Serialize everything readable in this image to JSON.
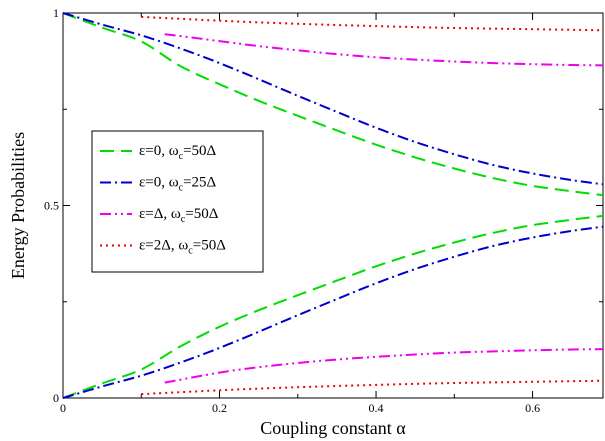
{
  "chart_data": {
    "type": "line",
    "title": "",
    "xlabel": "Coupling constant α",
    "ylabel": "Energy Probabilities",
    "xlim": [
      0,
      0.69
    ],
    "ylim": [
      0,
      1
    ],
    "x_ticks": [
      {
        "value": 0,
        "label": "0"
      },
      {
        "value": 0.2,
        "label": "0.2"
      },
      {
        "value": 0.4,
        "label": "0.4"
      },
      {
        "value": 0.6,
        "label": "0.6"
      }
    ],
    "y_ticks": [
      {
        "value": 0,
        "label": "0"
      },
      {
        "value": 0.5,
        "label": "0.5"
      },
      {
        "value": 1,
        "label": "1"
      }
    ],
    "grid": false,
    "legend_position": "left-center",
    "series": [
      {
        "key": "eps0-wc50",
        "legend_main": "ε=0, ω",
        "legend_sub": "c",
        "legend_tail": "=50Δ",
        "color": "#00dd00",
        "dash": "long-dash",
        "upper": {
          "x": [
            0,
            0.05,
            0.1,
            0.15,
            0.2,
            0.25,
            0.3,
            0.35,
            0.4,
            0.45,
            0.5,
            0.55,
            0.6,
            0.65,
            0.69
          ],
          "y": [
            1.0,
            0.962,
            0.926,
            0.862,
            0.815,
            0.772,
            0.733,
            0.695,
            0.658,
            0.625,
            0.596,
            0.571,
            0.551,
            0.537,
            0.527
          ]
        },
        "lower": {
          "x": [
            0,
            0.05,
            0.1,
            0.15,
            0.2,
            0.25,
            0.3,
            0.35,
            0.4,
            0.45,
            0.5,
            0.55,
            0.6,
            0.65,
            0.69
          ],
          "y": [
            0.0,
            0.038,
            0.074,
            0.134,
            0.185,
            0.228,
            0.267,
            0.305,
            0.342,
            0.375,
            0.404,
            0.429,
            0.449,
            0.463,
            0.473
          ]
        }
      },
      {
        "key": "eps0-wc25",
        "legend_main": "ε=0, ω",
        "legend_sub": "c",
        "legend_tail": "=25Δ",
        "color": "#0000cc",
        "dash": "dash-dot",
        "upper": {
          "x": [
            0,
            0.05,
            0.1,
            0.15,
            0.2,
            0.25,
            0.3,
            0.35,
            0.4,
            0.45,
            0.5,
            0.55,
            0.6,
            0.65,
            0.69
          ],
          "y": [
            1.0,
            0.97,
            0.942,
            0.908,
            0.87,
            0.828,
            0.785,
            0.743,
            0.702,
            0.665,
            0.633,
            0.605,
            0.583,
            0.566,
            0.555
          ]
        },
        "lower": {
          "x": [
            0,
            0.05,
            0.1,
            0.15,
            0.2,
            0.25,
            0.3,
            0.35,
            0.4,
            0.45,
            0.5,
            0.55,
            0.6,
            0.65,
            0.69
          ],
          "y": [
            0.0,
            0.03,
            0.058,
            0.092,
            0.13,
            0.172,
            0.215,
            0.257,
            0.298,
            0.335,
            0.367,
            0.395,
            0.417,
            0.434,
            0.445
          ]
        }
      },
      {
        "key": "epsD-wc50",
        "legend_main": "ε=Δ, ω",
        "legend_sub": "c",
        "legend_tail": "=50Δ",
        "color": "#ee00ee",
        "dash": "dash-dot-dot",
        "upper": {
          "x": [
            0.13,
            0.2,
            0.25,
            0.3,
            0.35,
            0.4,
            0.45,
            0.5,
            0.55,
            0.6,
            0.65,
            0.69
          ],
          "y": [
            0.945,
            0.927,
            0.914,
            0.903,
            0.893,
            0.885,
            0.879,
            0.874,
            0.87,
            0.867,
            0.865,
            0.864
          ]
        },
        "lower": {
          "x": [
            0.13,
            0.2,
            0.25,
            0.3,
            0.35,
            0.4,
            0.45,
            0.5,
            0.55,
            0.6,
            0.65,
            0.69
          ],
          "y": [
            0.04,
            0.066,
            0.08,
            0.091,
            0.1,
            0.107,
            0.113,
            0.118,
            0.121,
            0.124,
            0.126,
            0.127
          ]
        }
      },
      {
        "key": "eps2D-wc50",
        "legend_main": "ε=2Δ, ω",
        "legend_sub": "c",
        "legend_tail": "=50Δ",
        "color": "#ee0000",
        "dash": "dotted",
        "upper": {
          "x": [
            0.1,
            0.2,
            0.3,
            0.4,
            0.5,
            0.6,
            0.69
          ],
          "y": [
            0.99,
            0.98,
            0.972,
            0.966,
            0.961,
            0.958,
            0.955
          ]
        },
        "lower": {
          "x": [
            0.1,
            0.2,
            0.3,
            0.4,
            0.5,
            0.6,
            0.69
          ],
          "y": [
            0.01,
            0.02,
            0.028,
            0.034,
            0.039,
            0.042,
            0.045
          ]
        }
      }
    ]
  }
}
